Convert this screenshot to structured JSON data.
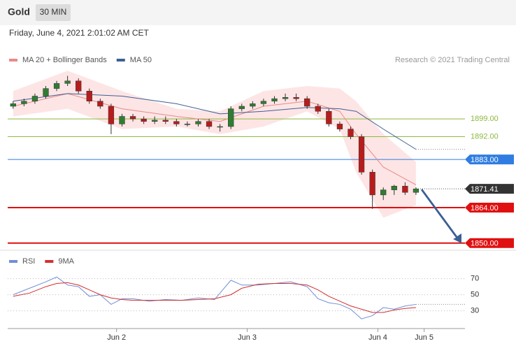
{
  "header": {
    "title": "Gold",
    "timeframe": "30 MIN",
    "date": "Friday, June 4, 2021 2:01:02 AM CET"
  },
  "chart_data": [
    {
      "type": "candlestick",
      "source": "Research © 2021 Trading Central",
      "xlim": [
        4,
        88
      ],
      "ylim": [
        1848,
        1928
      ],
      "up_color": "#2e7d32",
      "down_color": "#b71c1c",
      "x": [
        5,
        7,
        9,
        11,
        13,
        15,
        17,
        19,
        21,
        23,
        25,
        27,
        29,
        31,
        33,
        35,
        37,
        39,
        41,
        43,
        45,
        47,
        49,
        51,
        53,
        55,
        57,
        59,
        61,
        63,
        65,
        67,
        69,
        71,
        73,
        75,
        77,
        79
      ],
      "open": [
        1904,
        1905,
        1906,
        1908,
        1911,
        1913,
        1914,
        1910,
        1906,
        1904,
        1897,
        1900,
        1899,
        1898,
        1898.5,
        1898,
        1897,
        1897,
        1898,
        1896,
        1896,
        1903,
        1904,
        1905,
        1906,
        1907,
        1907.5,
        1907,
        1904,
        1902,
        1897,
        1895,
        1892,
        1878,
        1869,
        1871,
        1872.5,
        1870
      ],
      "high": [
        1906,
        1907,
        1909,
        1912,
        1914,
        1916,
        1915,
        1911,
        1907,
        1905,
        1901,
        1901,
        1900,
        1900,
        1900,
        1899,
        1898,
        1899,
        1899,
        1897,
        1904,
        1905,
        1906,
        1907,
        1908,
        1909,
        1909,
        1908,
        1905,
        1903,
        1898,
        1896,
        1893,
        1879,
        1872,
        1873,
        1874,
        1872
      ],
      "low": [
        1903,
        1904,
        1905,
        1907,
        1910,
        1912,
        1909,
        1905,
        1903,
        1893,
        1896,
        1898,
        1897,
        1897,
        1897,
        1896,
        1896,
        1896,
        1895,
        1894,
        1895,
        1902,
        1903,
        1904,
        1905,
        1906,
        1906,
        1903,
        1901,
        1896,
        1894,
        1891,
        1877,
        1863.5,
        1867,
        1869,
        1869,
        1869
      ],
      "close": [
        1905,
        1906,
        1908,
        1911,
        1913,
        1914,
        1910,
        1906,
        1904,
        1897,
        1900,
        1899,
        1898,
        1898.5,
        1898,
        1897,
        1897,
        1898,
        1896,
        1896,
        1903,
        1904,
        1905,
        1906,
        1907,
        1907.5,
        1907,
        1904,
        1902,
        1897,
        1895,
        1892,
        1878,
        1869,
        1871,
        1872.5,
        1870,
        1871.4
      ],
      "series": [
        {
          "name": "MA 20 + Bollinger Bands",
          "color": "#e88a8a",
          "band_color": "#fde0e0",
          "x": [
            5,
            15,
            25,
            35,
            43,
            51,
            59,
            65,
            68,
            73,
            79
          ],
          "values": [
            1904,
            1909,
            1903,
            1900,
            1898,
            1904,
            1906,
            1902,
            1893,
            1880,
            1873
          ],
          "upper": [
            1910,
            1918,
            1910,
            1903,
            1902,
            1910,
            1912,
            1911,
            1906,
            1893,
            1882
          ],
          "lower": [
            1900,
            1903,
            1895,
            1896,
            1893,
            1896,
            1902,
            1895,
            1878,
            1860,
            1865
          ]
        },
        {
          "name": "MA 50",
          "color": "#3d5f94",
          "x": [
            5,
            15,
            25,
            35,
            43,
            51,
            59,
            65,
            68,
            73,
            79
          ],
          "values": [
            1906,
            1909,
            1908,
            1905,
            1901,
            1902,
            1903.5,
            1903,
            1902,
            1895,
            1887
          ]
        }
      ],
      "levels": [
        {
          "value": 1899,
          "label": "1899.00",
          "color": "#8db83f",
          "style": "text"
        },
        {
          "value": 1892,
          "label": "1892.00",
          "color": "#8db83f",
          "style": "text"
        },
        {
          "value": 1883,
          "label": "1883.00",
          "color": "#2f7de1",
          "style": "box"
        },
        {
          "value": 1864,
          "label": "1864.00",
          "color": "#e01010",
          "style": "box"
        },
        {
          "value": 1850,
          "label": "1850.00",
          "color": "#e01010",
          "style": "box"
        }
      ],
      "last": {
        "value": 1871.41,
        "label": "1871.41",
        "color": "#333333"
      }
    },
    {
      "type": "line",
      "xlim": [
        4,
        88
      ],
      "ylim": [
        8,
        100
      ],
      "yticks": [
        30,
        50,
        70
      ],
      "xticks": [
        {
          "value": 24,
          "label": "Jun 2"
        },
        {
          "value": 48,
          "label": "Jun 3"
        },
        {
          "value": 72,
          "label": "Jun 4"
        },
        {
          "value": 80.5,
          "label": "Jun 5"
        }
      ],
      "series": [
        {
          "name": "RSI",
          "color": "#6f8fd6",
          "x": [
            5,
            8,
            11,
            13,
            15,
            17,
            19,
            21,
            23,
            25,
            27,
            30,
            33,
            36,
            39,
            42,
            45,
            47,
            50,
            53,
            56,
            59,
            61,
            63,
            65,
            67,
            69,
            71,
            73,
            75,
            77,
            79
          ],
          "values": [
            50,
            58,
            66,
            72,
            62,
            60,
            48,
            50,
            38,
            45,
            45,
            42,
            44,
            43,
            46,
            44,
            68,
            62,
            62,
            64,
            66,
            60,
            45,
            40,
            38,
            32,
            20,
            24,
            34,
            32,
            36,
            38
          ]
        },
        {
          "name": "9MA",
          "color": "#d32f2f",
          "x": [
            5,
            8,
            11,
            13,
            15,
            17,
            19,
            21,
            23,
            25,
            27,
            30,
            33,
            36,
            39,
            42,
            45,
            47,
            50,
            53,
            56,
            59,
            61,
            63,
            65,
            67,
            69,
            71,
            73,
            75,
            77,
            79
          ],
          "values": [
            48,
            52,
            60,
            64,
            65,
            62,
            56,
            50,
            46,
            44,
            43,
            43,
            43,
            43,
            44,
            45,
            50,
            58,
            63,
            64,
            64,
            62,
            56,
            48,
            42,
            36,
            32,
            28,
            28,
            31,
            33,
            34
          ]
        }
      ]
    }
  ]
}
